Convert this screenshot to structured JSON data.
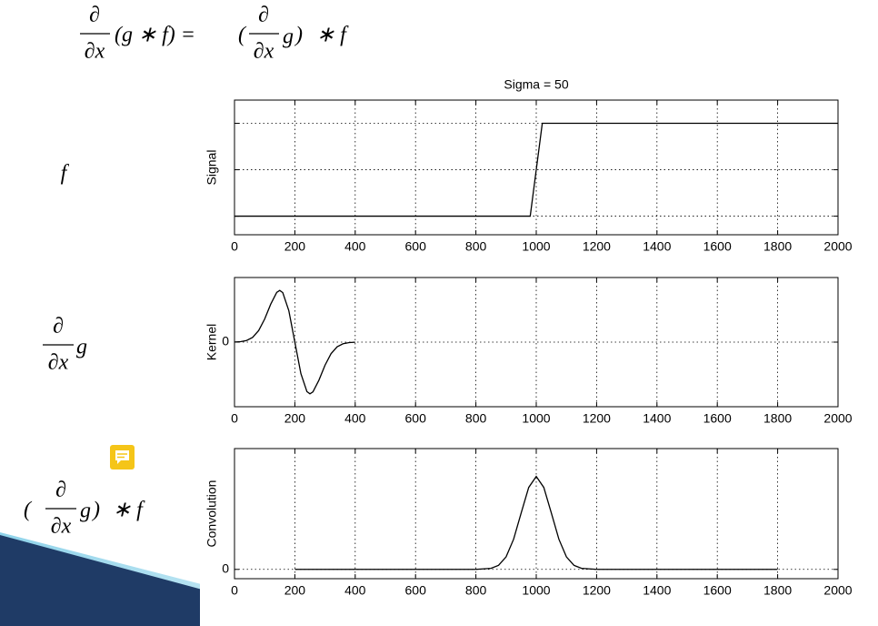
{
  "slide": {
    "top_equation": [
      "∂",
      "∂x",
      "(g ∗ f) =",
      "(",
      "∂",
      "∂x",
      "g",
      ")",
      "∗ f"
    ],
    "signal_label": "f",
    "kernel_label": [
      "∂",
      "∂x",
      "g"
    ],
    "convolution_label": [
      "(",
      "∂",
      "∂x",
      "g",
      ")",
      "∗ f"
    ]
  },
  "chart_data": [
    {
      "type": "line",
      "title": "Sigma = 50",
      "y_label": "Signal",
      "color": "#000000",
      "x": [
        0,
        980,
        1020,
        2000
      ],
      "values": [
        0,
        0,
        1,
        1
      ],
      "xlim": [
        0,
        2000
      ],
      "xticks": [
        0,
        200,
        400,
        600,
        800,
        1000,
        1200,
        1400,
        1600,
        1800,
        2000
      ],
      "ylim": [
        -0.2,
        1.25
      ],
      "yticks": [
        0,
        0.5,
        1
      ],
      "show_ytick_labels": false,
      "grid": true
    },
    {
      "type": "line",
      "y_label": "Kernel",
      "color": "#000000",
      "x": [
        0,
        20,
        40,
        60,
        80,
        100,
        120,
        140,
        150,
        160,
        180,
        200,
        220,
        240,
        250,
        260,
        280,
        300,
        320,
        340,
        360,
        380,
        400
      ],
      "values": [
        0.002,
        0.007,
        0.025,
        0.073,
        0.178,
        0.357,
        0.587,
        0.77,
        0.8,
        0.766,
        0.487,
        0,
        -0.487,
        -0.766,
        -0.8,
        -0.77,
        -0.587,
        -0.357,
        -0.178,
        -0.073,
        -0.025,
        -0.007,
        -0.002
      ],
      "xlim": [
        0,
        2000
      ],
      "xticks": [
        0,
        200,
        400,
        600,
        800,
        1000,
        1200,
        1400,
        1600,
        1800,
        2000
      ],
      "ylim": [
        -1,
        1
      ],
      "yticks": [
        0
      ],
      "show_ytick_labels": true,
      "grid": true
    },
    {
      "type": "line",
      "y_label": "Convolution",
      "color": "#000000",
      "x": [
        200,
        800,
        850,
        875,
        900,
        925,
        950,
        975,
        1000,
        1025,
        1050,
        1075,
        1100,
        1125,
        1150,
        1200,
        1800
      ],
      "values": [
        0,
        0,
        0.011,
        0.044,
        0.135,
        0.325,
        0.607,
        0.882,
        1,
        0.882,
        0.607,
        0.325,
        0.135,
        0.044,
        0.011,
        0,
        0
      ],
      "xlim": [
        0,
        2000
      ],
      "xticks": [
        0,
        200,
        400,
        600,
        800,
        1000,
        1200,
        1400,
        1600,
        1800,
        2000
      ],
      "ylim": [
        -0.1,
        1.3
      ],
      "yticks": [
        0
      ],
      "show_ytick_labels": true,
      "grid": true
    }
  ]
}
